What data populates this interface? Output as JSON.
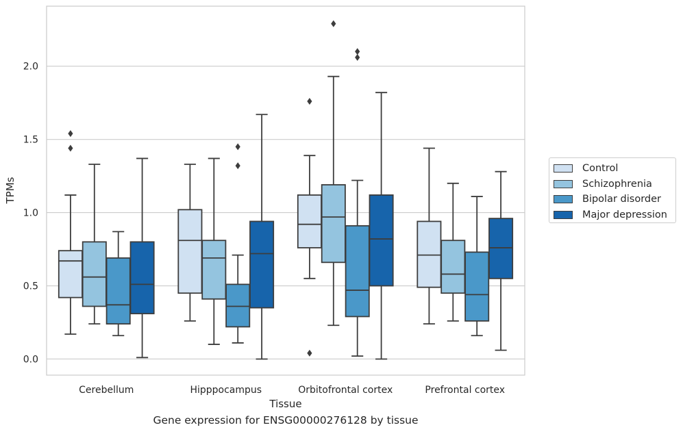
{
  "chart_data": {
    "type": "boxplot",
    "caption": "Gene expression for ENSG00000276128 by tissue",
    "xlabel": "Tissue",
    "ylabel": "TPMs",
    "ylim": [
      -0.11,
      2.41
    ],
    "yticks": [
      "0.0",
      "0.5",
      "1.0",
      "1.5",
      "2.0"
    ],
    "grid": "horizontal",
    "legend_position": "right",
    "categories": [
      "Cerebellum",
      "Hipppocampus",
      "Orbitofrontal cortex",
      "Prefrontal cortex"
    ],
    "series": [
      {
        "name": "Control",
        "color": "#d0e1f2",
        "boxes": [
          {
            "whislo": 0.17,
            "q1": 0.42,
            "med": 0.67,
            "q3": 0.74,
            "whishi": 1.12,
            "fliers": [
              1.44,
              1.54
            ]
          },
          {
            "whislo": 0.26,
            "q1": 0.45,
            "med": 0.81,
            "q3": 1.02,
            "whishi": 1.33,
            "fliers": []
          },
          {
            "whislo": 0.55,
            "q1": 0.76,
            "med": 0.92,
            "q3": 1.12,
            "whishi": 1.39,
            "fliers": [
              0.04,
              1.76
            ]
          },
          {
            "whislo": 0.24,
            "q1": 0.49,
            "med": 0.71,
            "q3": 0.94,
            "whishi": 1.44,
            "fliers": []
          }
        ]
      },
      {
        "name": "Schizophrenia",
        "color": "#94c4df",
        "boxes": [
          {
            "whislo": 0.24,
            "q1": 0.36,
            "med": 0.56,
            "q3": 0.8,
            "whishi": 1.33,
            "fliers": []
          },
          {
            "whislo": 0.1,
            "q1": 0.41,
            "med": 0.69,
            "q3": 0.81,
            "whishi": 1.37,
            "fliers": []
          },
          {
            "whislo": 0.23,
            "q1": 0.66,
            "med": 0.97,
            "q3": 1.19,
            "whishi": 1.93,
            "fliers": [
              2.29
            ]
          },
          {
            "whislo": 0.26,
            "q1": 0.45,
            "med": 0.58,
            "q3": 0.81,
            "whishi": 1.2,
            "fliers": []
          }
        ]
      },
      {
        "name": "Bipolar disorder",
        "color": "#4a98c9",
        "boxes": [
          {
            "whislo": 0.16,
            "q1": 0.24,
            "med": 0.37,
            "q3": 0.69,
            "whishi": 0.87,
            "fliers": []
          },
          {
            "whislo": 0.11,
            "q1": 0.22,
            "med": 0.36,
            "q3": 0.51,
            "whishi": 0.71,
            "fliers": [
              1.32,
              1.45
            ]
          },
          {
            "whislo": 0.02,
            "q1": 0.29,
            "med": 0.47,
            "q3": 0.91,
            "whishi": 1.22,
            "fliers": [
              2.06,
              2.1
            ]
          },
          {
            "whislo": 0.16,
            "q1": 0.26,
            "med": 0.44,
            "q3": 0.73,
            "whishi": 1.11,
            "fliers": []
          }
        ]
      },
      {
        "name": "Major depression",
        "color": "#1764ab",
        "boxes": [
          {
            "whislo": 0.01,
            "q1": 0.31,
            "med": 0.51,
            "q3": 0.8,
            "whishi": 1.37,
            "fliers": []
          },
          {
            "whislo": 0.0,
            "q1": 0.35,
            "med": 0.72,
            "q3": 0.94,
            "whishi": 1.67,
            "fliers": []
          },
          {
            "whislo": 0.0,
            "q1": 0.5,
            "med": 0.82,
            "q3": 1.12,
            "whishi": 1.82,
            "fliers": []
          },
          {
            "whislo": 0.06,
            "q1": 0.55,
            "med": 0.76,
            "q3": 0.96,
            "whishi": 1.28,
            "fliers": []
          }
        ]
      }
    ]
  }
}
